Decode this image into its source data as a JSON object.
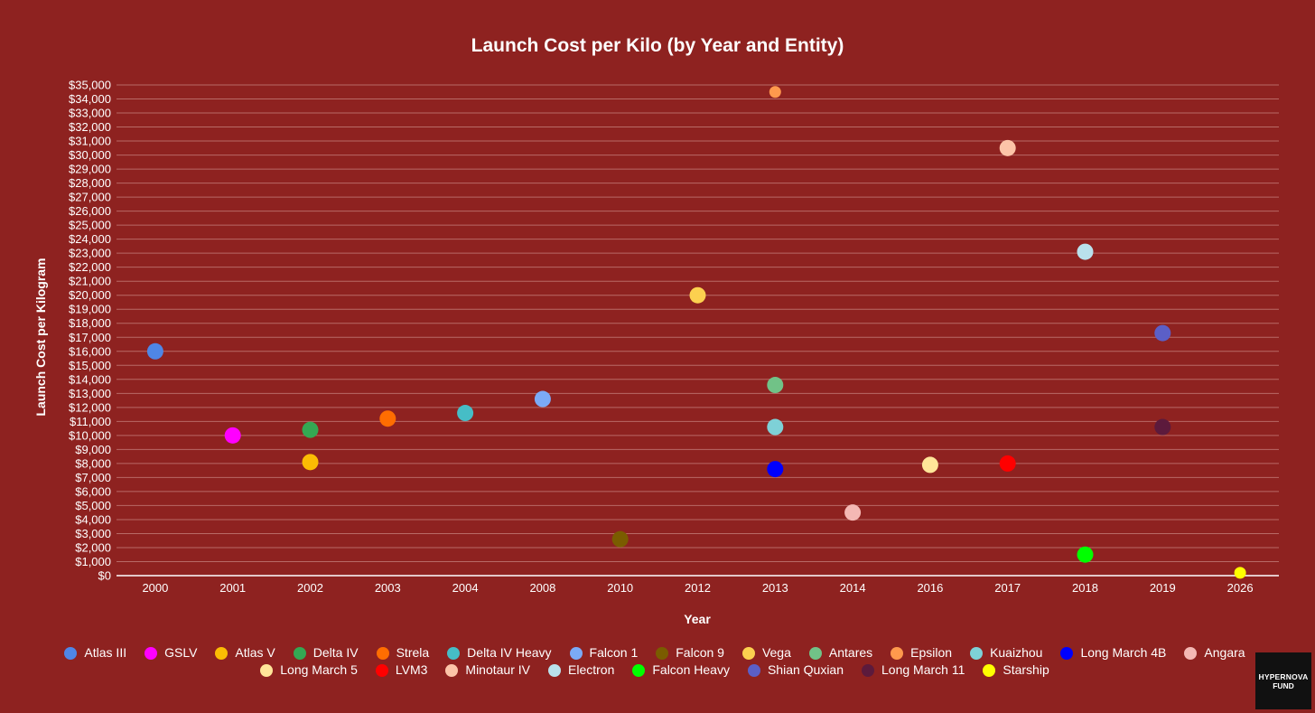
{
  "colors": {
    "background": "#8e2220",
    "text": "#ffffff",
    "grid": "#b86a66"
  },
  "logo": {
    "line1": "HYPERNOVA",
    "line2": "FUND"
  },
  "chart_data": {
    "type": "scatter",
    "title": "Launch Cost per Kilo (by Year and Entity)",
    "xlabel": "Year",
    "ylabel": "Launch Cost per Kilogram",
    "categories": [
      "2000",
      "2001",
      "2002",
      "2003",
      "2004",
      "2008",
      "2010",
      "2012",
      "2013",
      "2014",
      "2016",
      "2017",
      "2018",
      "2019",
      "2026"
    ],
    "ylim": [
      0,
      35000
    ],
    "ytick_step": 1000,
    "grid": true,
    "legend_position": "bottom",
    "series": [
      {
        "name": "Atlas III",
        "color": "#4f86e6",
        "x": "2000",
        "y": 16000
      },
      {
        "name": "GSLV",
        "color": "#ff00ff",
        "x": "2001",
        "y": 10000
      },
      {
        "name": "Atlas V",
        "color": "#fbbc04",
        "x": "2002",
        "y": 8100
      },
      {
        "name": "Delta IV",
        "color": "#34a853",
        "x": "2002",
        "y": 10400
      },
      {
        "name": "Strela",
        "color": "#ff6d01",
        "x": "2003",
        "y": 11200
      },
      {
        "name": "Delta IV Heavy",
        "color": "#46bdc6",
        "x": "2004",
        "y": 11600
      },
      {
        "name": "Falcon 1",
        "color": "#7baaf7",
        "x": "2008",
        "y": 12600
      },
      {
        "name": "Falcon 9",
        "color": "#7a5c00",
        "x": "2010",
        "y": 2600
      },
      {
        "name": "Vega",
        "color": "#fcd04f",
        "x": "2012",
        "y": 20000
      },
      {
        "name": "Antares",
        "color": "#71c287",
        "x": "2013",
        "y": 13600
      },
      {
        "name": "Epsilon",
        "color": "#ff994d",
        "x": "2013",
        "y": 34500
      },
      {
        "name": "Kuaizhou",
        "color": "#7ed1d7",
        "x": "2013",
        "y": 10600
      },
      {
        "name": "Long March 4B",
        "color": "#0000ff",
        "x": "2013",
        "y": 7600
      },
      {
        "name": "Angara",
        "color": "#f4b8b4",
        "x": "2014",
        "y": 4500
      },
      {
        "name": "Long March 5",
        "color": "#ffe599",
        "x": "2016",
        "y": 7900
      },
      {
        "name": "LVM3",
        "color": "#ff0000",
        "x": "2017",
        "y": 8000
      },
      {
        "name": "Minotaur IV",
        "color": "#fcc4a8",
        "x": "2017",
        "y": 30500
      },
      {
        "name": "Electron",
        "color": "#b9e1ec",
        "x": "2018",
        "y": 23100
      },
      {
        "name": "Falcon Heavy",
        "color": "#00ff00",
        "x": "2018",
        "y": 1500
      },
      {
        "name": "Shian Quxian",
        "color": "#5b5fc7",
        "x": "2019",
        "y": 17300
      },
      {
        "name": "Long March 11",
        "color": "#5c1a3c",
        "x": "2019",
        "y": 10600
      },
      {
        "name": "Starship",
        "color": "#ffff00",
        "x": "2026",
        "y": 200
      }
    ]
  }
}
